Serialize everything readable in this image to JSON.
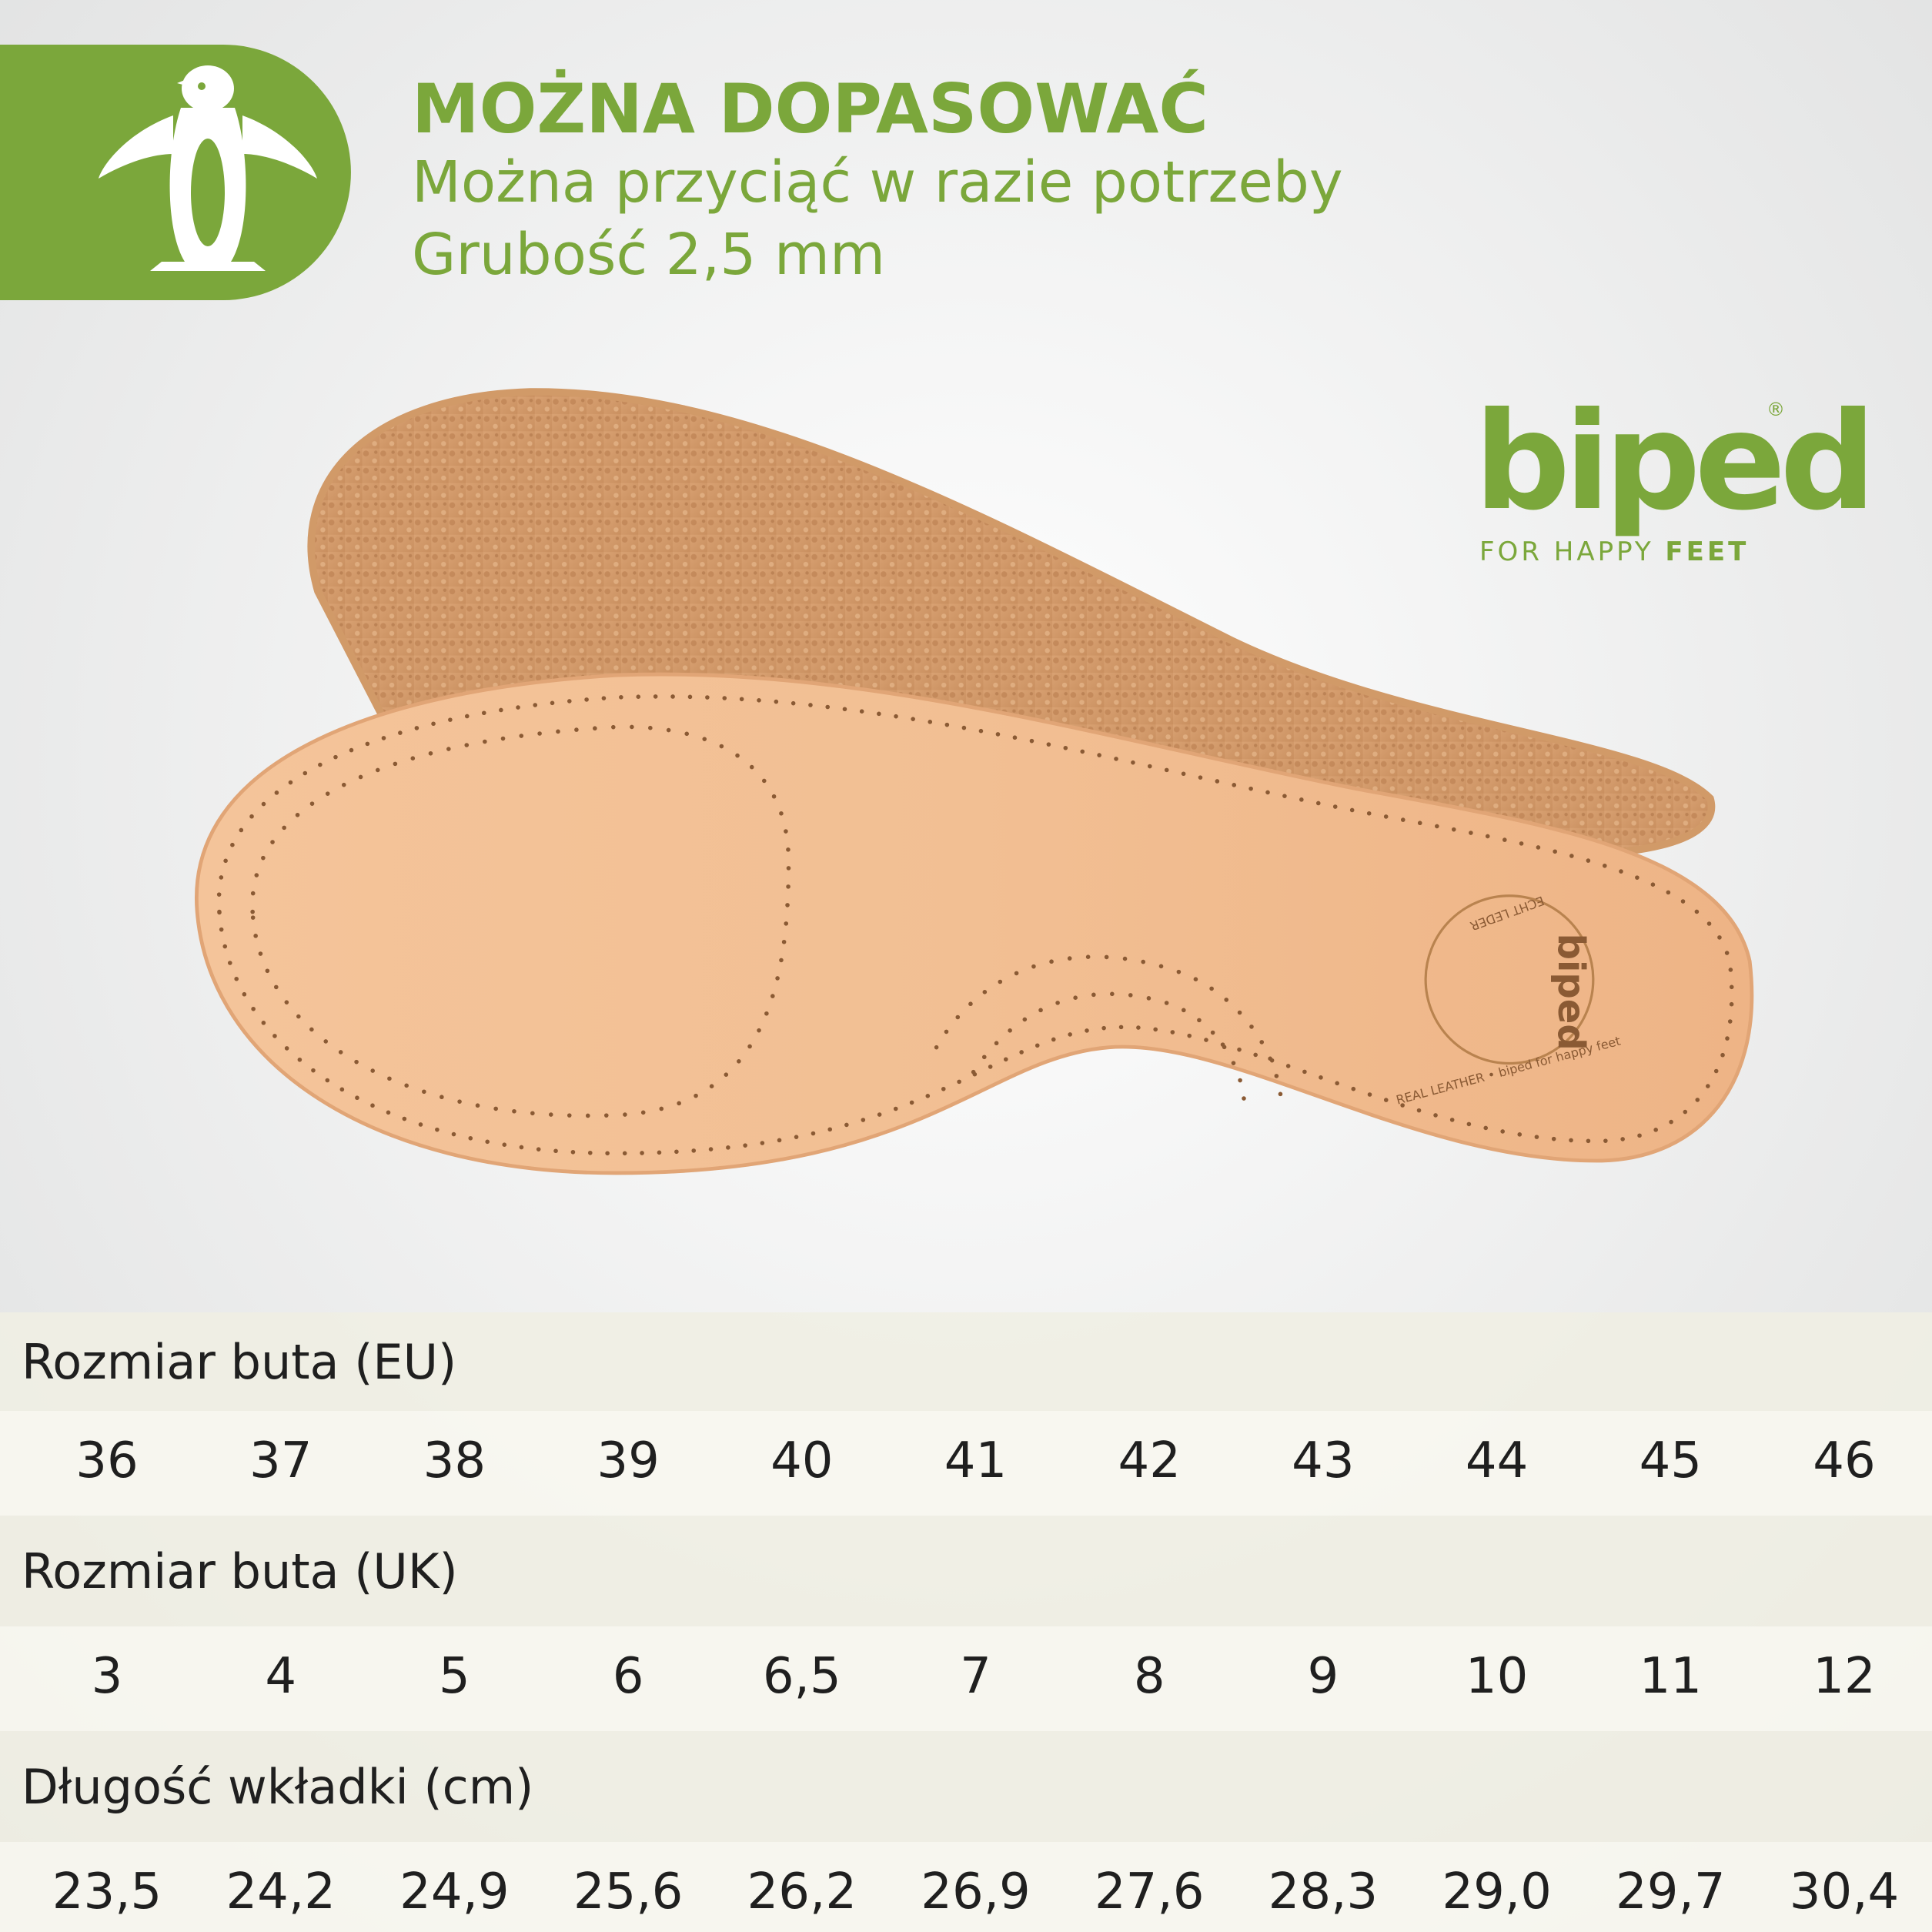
{
  "header": {
    "title": "MOŻNA DOPASOWAĆ",
    "lines": [
      "Można przyciąć w razie potrzeby",
      "Grubość 2,5 mm"
    ]
  },
  "logo": {
    "brand": "biped",
    "mark": "®",
    "tagline_start": "FOR HAPPY ",
    "tagline_bold": "FEET"
  },
  "emboss": {
    "brand": "biped",
    "ring_top": "ECHT LEDER",
    "ring_bottom": "REAL LEATHER • biped for happy feet"
  },
  "table": {
    "rows": [
      {
        "label": "Rozmiar buta (EU)",
        "values": [
          "36",
          "37",
          "38",
          "39",
          "40",
          "41",
          "42",
          "43",
          "44",
          "45",
          "46"
        ]
      },
      {
        "label": "Rozmiar buta (UK)",
        "values": [
          "3",
          "4",
          "5",
          "6",
          "6,5",
          "7",
          "8",
          "9",
          "10",
          "11",
          "12"
        ]
      },
      {
        "label": "Długość wkładki (cm)",
        "values": [
          "23,5",
          "24,2",
          "24,9",
          "25,6",
          "26,2",
          "26,9",
          "27,6",
          "28,3",
          "29,0",
          "29,7",
          "30,4"
        ]
      }
    ]
  }
}
